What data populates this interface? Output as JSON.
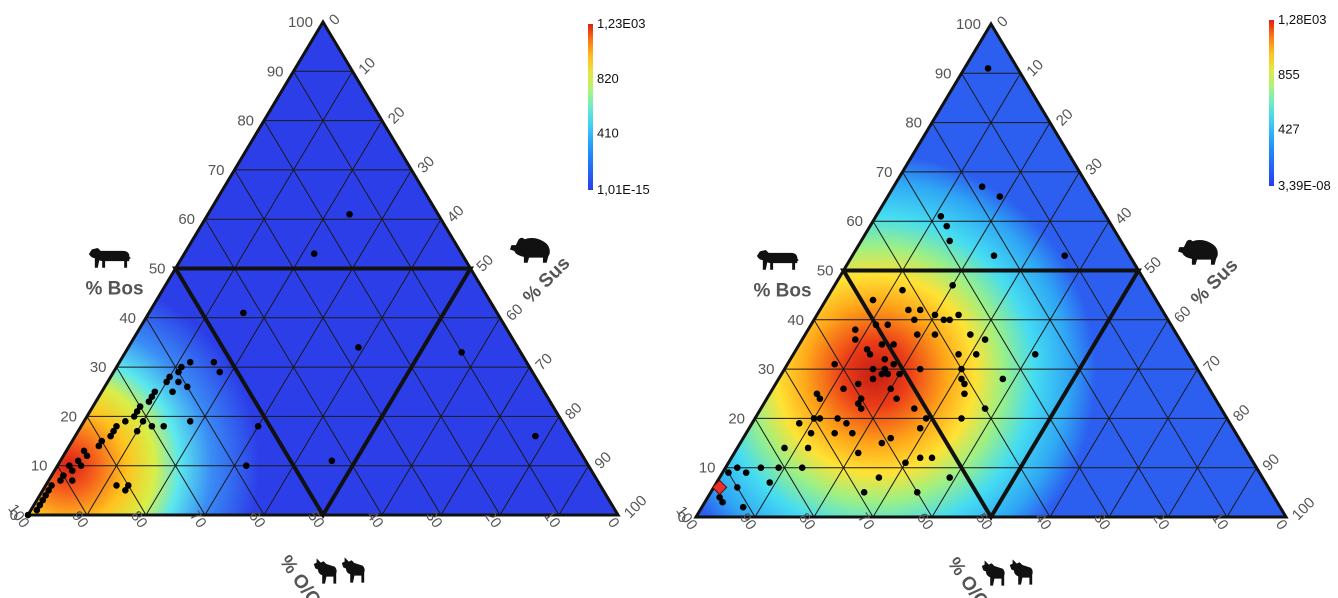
{
  "chart_data": [
    {
      "type": "ternary-heatmap",
      "axes": {
        "bos": {
          "label": "% Bos"
        },
        "sus": {
          "label": "% Sus"
        },
        "oc": {
          "label": "% O/C"
        }
      },
      "ticks": {
        "bos": [
          "0",
          "10",
          "20",
          "30",
          "40",
          "50",
          "60",
          "70",
          "80",
          "90",
          "100"
        ],
        "sus": [
          "0",
          "10",
          "20",
          "30",
          "40",
          "50",
          "60",
          "70",
          "80",
          "90",
          "100"
        ],
        "oc": [
          "100",
          "90",
          "80",
          "70",
          "60",
          "50",
          "40",
          "30",
          "20",
          "10",
          "0"
        ]
      },
      "colorbar": {
        "max": "1,23E03",
        "mid_high": "820",
        "mid_low": "410",
        "min": "1,01E-15"
      },
      "density_peak": {
        "bos": 10,
        "sus": 2,
        "oc": 88
      },
      "points": [
        {
          "bos": 0,
          "sus": 0
        },
        {
          "bos": 1,
          "sus": 1
        },
        {
          "bos": 2,
          "sus": 1
        },
        {
          "bos": 3,
          "sus": 1
        },
        {
          "bos": 4,
          "sus": 1
        },
        {
          "bos": 5,
          "sus": 1
        },
        {
          "bos": 6,
          "sus": 1
        },
        {
          "bos": 7,
          "sus": 2
        },
        {
          "bos": 8,
          "sus": 2
        },
        {
          "bos": 9,
          "sus": 3
        },
        {
          "bos": 10,
          "sus": 2
        },
        {
          "bos": 10,
          "sus": 4
        },
        {
          "bos": 11,
          "sus": 3
        },
        {
          "bos": 12,
          "sus": 4
        },
        {
          "bos": 13,
          "sus": 3
        },
        {
          "bos": 14,
          "sus": 5
        },
        {
          "bos": 15,
          "sus": 5
        },
        {
          "bos": 16,
          "sus": 6
        },
        {
          "bos": 17,
          "sus": 6
        },
        {
          "bos": 18,
          "sus": 6
        },
        {
          "bos": 19,
          "sus": 7
        },
        {
          "bos": 20,
          "sus": 8
        },
        {
          "bos": 21,
          "sus": 8
        },
        {
          "bos": 22,
          "sus": 8
        },
        {
          "bos": 23,
          "sus": 9
        },
        {
          "bos": 24,
          "sus": 9
        },
        {
          "bos": 25,
          "sus": 9
        },
        {
          "bos": 27,
          "sus": 10
        },
        {
          "bos": 28,
          "sus": 10
        },
        {
          "bos": 29,
          "sus": 11
        },
        {
          "bos": 30,
          "sus": 11
        },
        {
          "bos": 31,
          "sus": 12
        },
        {
          "bos": 41,
          "sus": 16
        },
        {
          "bos": 53,
          "sus": 22
        },
        {
          "bos": 61,
          "sus": 24
        },
        {
          "bos": 29,
          "sus": 18
        },
        {
          "bos": 27,
          "sus": 12
        },
        {
          "bos": 26,
          "sus": 14
        },
        {
          "bos": 25,
          "sus": 12
        },
        {
          "bos": 19,
          "sus": 10
        },
        {
          "bos": 18,
          "sus": 12
        },
        {
          "bos": 18,
          "sus": 14
        },
        {
          "bos": 19,
          "sus": 18
        },
        {
          "bos": 17,
          "sus": 10
        },
        {
          "bos": 7,
          "sus": 4
        },
        {
          "bos": 6,
          "sus": 12
        },
        {
          "bos": 6,
          "sus": 14
        },
        {
          "bos": 5,
          "sus": 14
        },
        {
          "bos": 31,
          "sus": 16
        },
        {
          "bos": 18,
          "sus": 30
        },
        {
          "bos": 10,
          "sus": 32
        },
        {
          "bos": 34,
          "sus": 39
        },
        {
          "bos": 33,
          "sus": 57
        },
        {
          "bos": 11,
          "sus": 46
        },
        {
          "bos": 16,
          "sus": 78
        }
      ]
    },
    {
      "type": "ternary-heatmap",
      "axes": {
        "bos": {
          "label": "% Bos"
        },
        "sus": {
          "label": "% Sus"
        },
        "oc": {
          "label": "% O/C"
        }
      },
      "ticks": {
        "bos": [
          "0",
          "10",
          "20",
          "30",
          "40",
          "50",
          "60",
          "70",
          "80",
          "90",
          "100"
        ],
        "sus": [
          "0",
          "10",
          "20",
          "30",
          "40",
          "50",
          "60",
          "70",
          "80",
          "90",
          "100"
        ],
        "oc": [
          "100",
          "90",
          "80",
          "70",
          "60",
          "50",
          "40",
          "30",
          "20",
          "10",
          "0"
        ]
      },
      "colorbar": {
        "max": "1,28E03",
        "mid_high": "855",
        "mid_low": "427",
        "min": "3,39E-08"
      },
      "density_peak": {
        "bos": 29,
        "sus": 16,
        "oc": 55
      },
      "marker": {
        "bos": 6,
        "sus": 1,
        "shape": "diamond",
        "color": "#e8302a"
      },
      "points": [
        {
          "bos": 91,
          "sus": 4
        },
        {
          "bos": 67,
          "sus": 15
        },
        {
          "bos": 65,
          "sus": 19
        },
        {
          "bos": 61,
          "sus": 11
        },
        {
          "bos": 59,
          "sus": 13
        },
        {
          "bos": 56,
          "sus": 15
        },
        {
          "bos": 53,
          "sus": 24
        },
        {
          "bos": 53,
          "sus": 36
        },
        {
          "bos": 47,
          "sus": 20
        },
        {
          "bos": 46,
          "sus": 12
        },
        {
          "bos": 44,
          "sus": 8
        },
        {
          "bos": 42,
          "sus": 17
        },
        {
          "bos": 42,
          "sus": 15
        },
        {
          "bos": 41,
          "sus": 20
        },
        {
          "bos": 41,
          "sus": 24
        },
        {
          "bos": 40,
          "sus": 17
        },
        {
          "bos": 40,
          "sus": 22
        },
        {
          "bos": 40,
          "sus": 23
        },
        {
          "bos": 39,
          "sus": 11
        },
        {
          "bos": 39,
          "sus": 13
        },
        {
          "bos": 38,
          "sus": 8
        },
        {
          "bos": 37,
          "sus": 19
        },
        {
          "bos": 37,
          "sus": 22
        },
        {
          "bos": 37,
          "sus": 28
        },
        {
          "bos": 36,
          "sus": 9
        },
        {
          "bos": 36,
          "sus": 31
        },
        {
          "bos": 35,
          "sus": 16
        },
        {
          "bos": 34,
          "sus": 12
        },
        {
          "bos": 33,
          "sus": 13
        },
        {
          "bos": 33,
          "sus": 31
        },
        {
          "bos": 33,
          "sus": 41
        },
        {
          "bos": 33,
          "sus": 28
        },
        {
          "bos": 32,
          "sus": 16
        },
        {
          "bos": 31,
          "sus": 18
        },
        {
          "bos": 31,
          "sus": 8
        },
        {
          "bos": 30,
          "sus": 15
        },
        {
          "bos": 30,
          "sus": 17
        },
        {
          "bos": 30,
          "sus": 23
        },
        {
          "bos": 30,
          "sus": 30
        },
        {
          "bos": 29,
          "sus": 20
        },
        {
          "bos": 29,
          "sus": 18
        },
        {
          "bos": 29,
          "sus": 17
        },
        {
          "bos": 28,
          "sus": 38
        },
        {
          "bos": 28,
          "sus": 16
        },
        {
          "bos": 28,
          "sus": 31
        },
        {
          "bos": 27,
          "sus": 32
        },
        {
          "bos": 26,
          "sus": 20
        },
        {
          "bos": 25,
          "sus": 8
        },
        {
          "bos": 25,
          "sus": 33
        },
        {
          "bos": 24,
          "sus": 9
        },
        {
          "bos": 24,
          "sus": 22
        },
        {
          "bos": 24,
          "sus": 16
        },
        {
          "bos": 23,
          "sus": 16
        },
        {
          "bos": 22,
          "sus": 17
        },
        {
          "bos": 22,
          "sus": 38
        },
        {
          "bos": 22,
          "sus": 26
        },
        {
          "bos": 20,
          "sus": 10
        },
        {
          "bos": 20,
          "sus": 14
        },
        {
          "bos": 20,
          "sus": 29
        },
        {
          "bos": 20,
          "sus": 35
        },
        {
          "bos": 20,
          "sus": 11
        },
        {
          "bos": 19,
          "sus": 8
        },
        {
          "bos": 19,
          "sus": 16
        },
        {
          "bos": 18,
          "sus": 29
        },
        {
          "bos": 17,
          "sus": 11
        },
        {
          "bos": 17,
          "sus": 15
        },
        {
          "bos": 17,
          "sus": 18
        },
        {
          "bos": 16,
          "sus": 25
        },
        {
          "bos": 15,
          "sus": 24
        },
        {
          "bos": 14,
          "sus": 8
        },
        {
          "bos": 14,
          "sus": 12
        },
        {
          "bos": 13,
          "sus": 21
        },
        {
          "bos": 12,
          "sus": 32
        },
        {
          "bos": 12,
          "sus": 34
        },
        {
          "bos": 11,
          "sus": 30
        },
        {
          "bos": 10,
          "sus": 9
        },
        {
          "bos": 10,
          "sus": 6
        },
        {
          "bos": 10,
          "sus": 13
        },
        {
          "bos": 9,
          "sus": 1
        },
        {
          "bos": 8,
          "sus": 27
        },
        {
          "bos": 8,
          "sus": 39
        },
        {
          "bos": 7,
          "sus": 9
        },
        {
          "bos": 6,
          "sus": 4
        },
        {
          "bos": 5,
          "sus": 26
        },
        {
          "bos": 5,
          "sus": 35
        },
        {
          "bos": 4,
          "sus": 2
        },
        {
          "bos": 3,
          "sus": 3
        },
        {
          "bos": 2,
          "sus": 7
        },
        {
          "bos": 10,
          "sus": 2
        },
        {
          "bos": 9,
          "sus": 4
        },
        {
          "bos": 26,
          "sus": 12
        },
        {
          "bos": 27,
          "sus": 14
        },
        {
          "bos": 35,
          "sus": 14
        }
      ]
    }
  ]
}
